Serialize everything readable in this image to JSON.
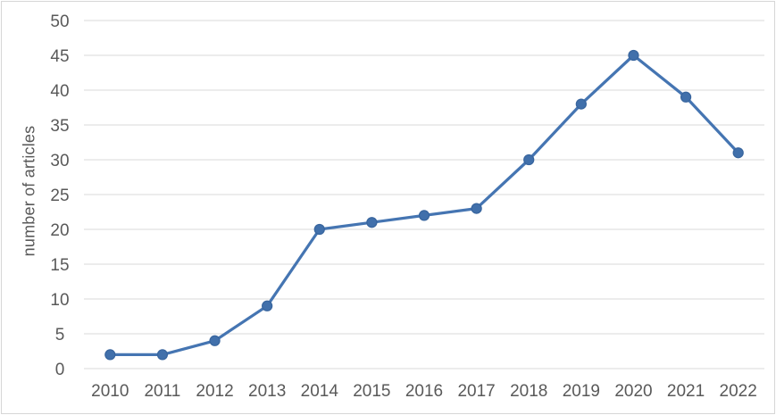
{
  "chart_data": {
    "type": "line",
    "title": "",
    "xlabel": "",
    "ylabel": "number of articles",
    "categories": [
      "2010",
      "2011",
      "2012",
      "2013",
      "2014",
      "2015",
      "2016",
      "2017",
      "2018",
      "2019",
      "2020",
      "2021",
      "2022"
    ],
    "series": [
      {
        "name": "number of articles",
        "values": [
          2,
          2,
          4,
          9,
          20,
          21,
          22,
          23,
          30,
          38,
          45,
          39,
          31
        ]
      }
    ],
    "ylim": [
      0,
      50
    ],
    "yticks": [
      0,
      5,
      10,
      15,
      20,
      25,
      30,
      35,
      40,
      45,
      50
    ],
    "grid": "horizontal-only",
    "legend": "none",
    "marker": "circle"
  },
  "colors": {
    "line": "#4575b2",
    "marker_fill": "#4170ab",
    "marker_stroke": "#38659e",
    "gridline": "#d9d9d9",
    "axis_text": "#595959",
    "frame_border": "#d6d6d6",
    "background": "#ffffff"
  }
}
